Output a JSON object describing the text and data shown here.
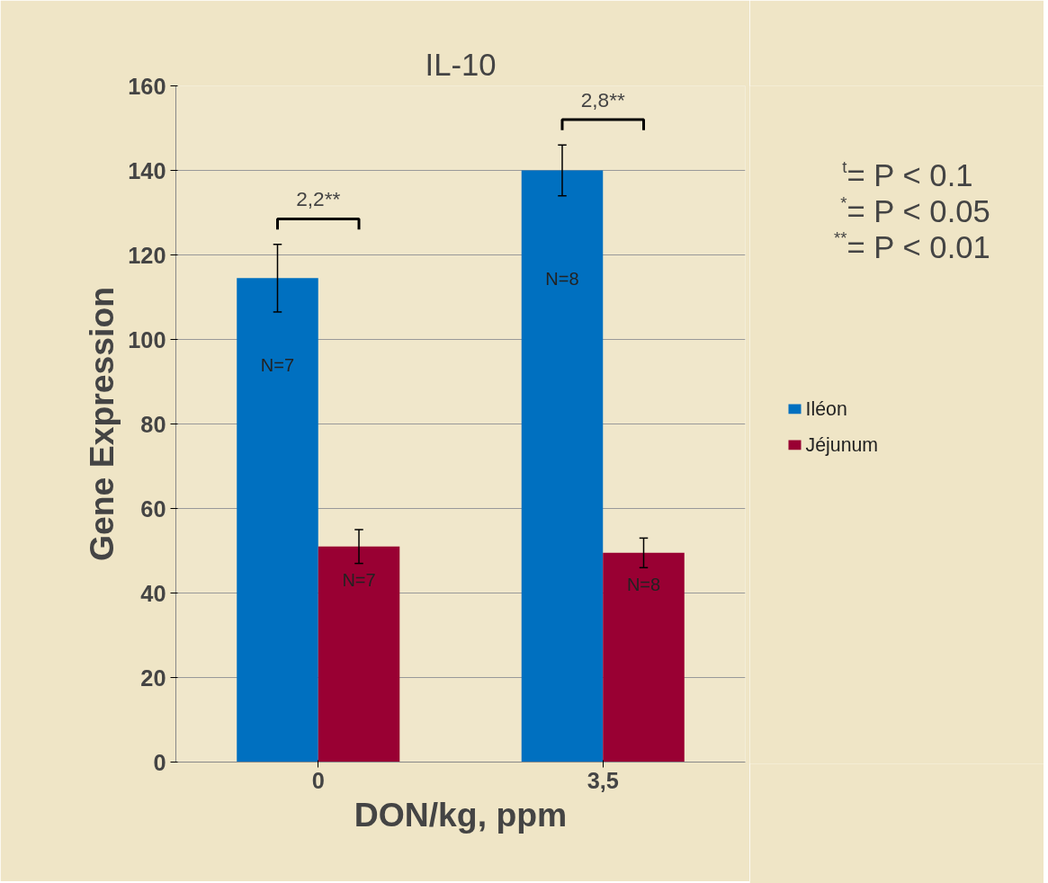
{
  "chart_data": {
    "type": "bar",
    "title": "IL-10",
    "xlabel": "DON/kg, ppm",
    "ylabel": "Gene Expression",
    "categories": [
      "0",
      "3,5"
    ],
    "series": [
      {
        "name": "Iléon",
        "color": "#0070c0",
        "values": [
          114.5,
          140
        ],
        "errors": [
          8,
          6
        ]
      },
      {
        "name": "Jéjunum",
        "color": "#990033",
        "values": [
          51,
          49.5
        ],
        "errors": [
          4,
          3.5
        ]
      }
    ],
    "ylim": [
      0,
      160
    ],
    "yticks": [
      0,
      20,
      40,
      60,
      80,
      100,
      120,
      140,
      160
    ],
    "grid": "y",
    "legend": "right",
    "annotations": [
      "N=7",
      "N=8",
      "N=7",
      "N=8",
      "2,2**",
      "2,8**",
      "$^{t}$= P < 0.1",
      "$^{*}$= P < 0.05",
      "$^{**}$= P < 0.01"
    ]
  }
}
